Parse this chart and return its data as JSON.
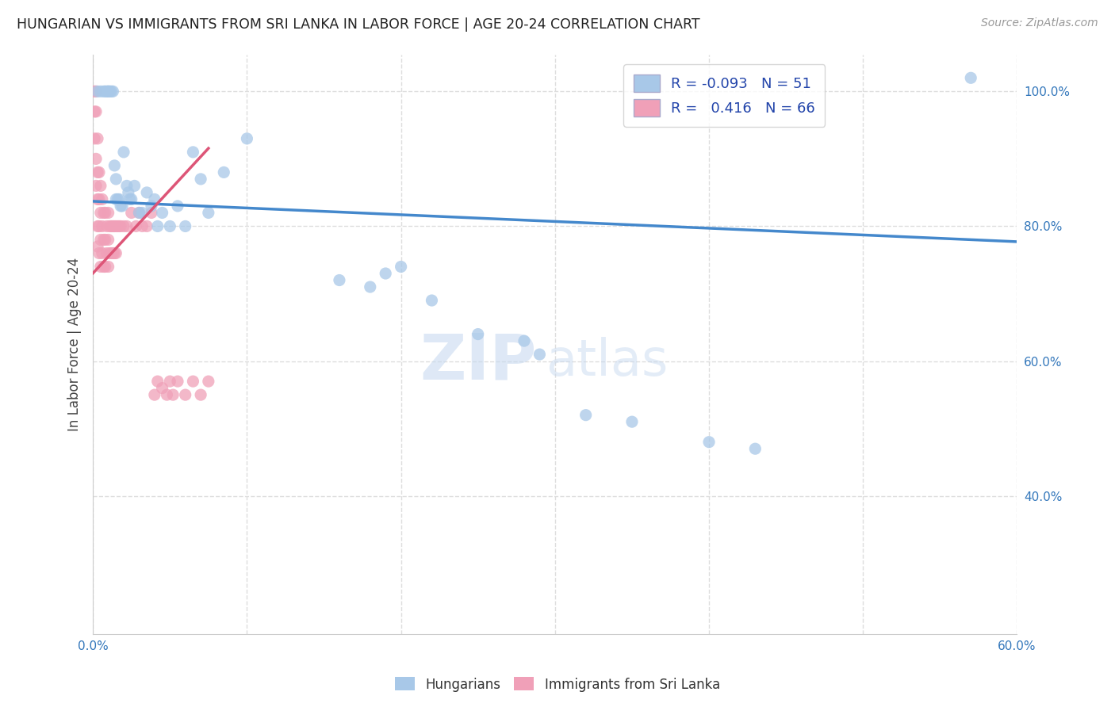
{
  "title": "HUNGARIAN VS IMMIGRANTS FROM SRI LANKA IN LABOR FORCE | AGE 20-24 CORRELATION CHART",
  "source": "Source: ZipAtlas.com",
  "ylabel": "In Labor Force | Age 20-24",
  "xlim": [
    0.0,
    0.6
  ],
  "ylim": [
    0.195,
    1.055
  ],
  "xticks": [
    0.0,
    0.1,
    0.2,
    0.3,
    0.4,
    0.5,
    0.6
  ],
  "xtick_labels": [
    "0.0%",
    "",
    "",
    "",
    "",
    "",
    "60.0%"
  ],
  "ytick_labels_right": [
    "100.0%",
    "80.0%",
    "60.0%",
    "40.0%"
  ],
  "yticks_right": [
    1.0,
    0.8,
    0.6,
    0.4
  ],
  "blue_R": -0.093,
  "blue_N": 51,
  "pink_R": 0.416,
  "pink_N": 66,
  "blue_color": "#a8c8e8",
  "pink_color": "#f0a0b8",
  "blue_line_color": "#4488cc",
  "pink_line_color": "#dd5577",
  "blue_dots_x": [
    0.003,
    0.005,
    0.007,
    0.008,
    0.009,
    0.01,
    0.01,
    0.011,
    0.012,
    0.013,
    0.014,
    0.015,
    0.015,
    0.016,
    0.017,
    0.018,
    0.019,
    0.02,
    0.022,
    0.023,
    0.024,
    0.025,
    0.027,
    0.03,
    0.032,
    0.035,
    0.038,
    0.04,
    0.042,
    0.045,
    0.05,
    0.055,
    0.06,
    0.065,
    0.07,
    0.075,
    0.085,
    0.1,
    0.16,
    0.18,
    0.19,
    0.2,
    0.22,
    0.25,
    0.28,
    0.29,
    0.32,
    0.35,
    0.4,
    0.43,
    0.57
  ],
  "blue_dots_y": [
    1.0,
    1.0,
    1.0,
    1.0,
    1.0,
    1.0,
    1.0,
    1.0,
    1.0,
    1.0,
    0.89,
    0.87,
    0.84,
    0.84,
    0.84,
    0.83,
    0.83,
    0.91,
    0.86,
    0.85,
    0.84,
    0.84,
    0.86,
    0.82,
    0.82,
    0.85,
    0.83,
    0.84,
    0.8,
    0.82,
    0.8,
    0.83,
    0.8,
    0.91,
    0.87,
    0.82,
    0.88,
    0.93,
    0.72,
    0.71,
    0.73,
    0.74,
    0.69,
    0.64,
    0.63,
    0.61,
    0.52,
    0.51,
    0.48,
    0.47,
    1.02
  ],
  "pink_dots_x": [
    0.001,
    0.001,
    0.001,
    0.002,
    0.002,
    0.002,
    0.002,
    0.003,
    0.003,
    0.003,
    0.003,
    0.003,
    0.004,
    0.004,
    0.004,
    0.004,
    0.005,
    0.005,
    0.005,
    0.005,
    0.006,
    0.006,
    0.006,
    0.007,
    0.007,
    0.007,
    0.008,
    0.008,
    0.008,
    0.009,
    0.009,
    0.01,
    0.01,
    0.01,
    0.011,
    0.011,
    0.012,
    0.012,
    0.013,
    0.013,
    0.014,
    0.014,
    0.015,
    0.015,
    0.016,
    0.017,
    0.018,
    0.02,
    0.022,
    0.025,
    0.028,
    0.03,
    0.032,
    0.035,
    0.038,
    0.04,
    0.042,
    0.045,
    0.048,
    0.05,
    0.052,
    0.055,
    0.06,
    0.065,
    0.07,
    0.075
  ],
  "pink_dots_y": [
    0.97,
    1.0,
    0.93,
    1.0,
    0.97,
    0.9,
    0.86,
    0.93,
    0.88,
    0.84,
    0.8,
    0.77,
    0.88,
    0.84,
    0.8,
    0.76,
    0.86,
    0.82,
    0.78,
    0.74,
    0.84,
    0.8,
    0.76,
    0.82,
    0.78,
    0.74,
    0.82,
    0.78,
    0.74,
    0.8,
    0.76,
    0.82,
    0.78,
    0.74,
    0.8,
    0.76,
    0.8,
    0.76,
    0.8,
    0.76,
    0.8,
    0.76,
    0.8,
    0.76,
    0.8,
    0.8,
    0.8,
    0.8,
    0.8,
    0.82,
    0.8,
    0.82,
    0.8,
    0.8,
    0.82,
    0.55,
    0.57,
    0.56,
    0.55,
    0.57,
    0.55,
    0.57,
    0.55,
    0.57,
    0.55,
    0.57
  ],
  "watermark_zip": "ZIP",
  "watermark_atlas": "atlas",
  "background_color": "#ffffff",
  "grid_color": "#dddddd"
}
